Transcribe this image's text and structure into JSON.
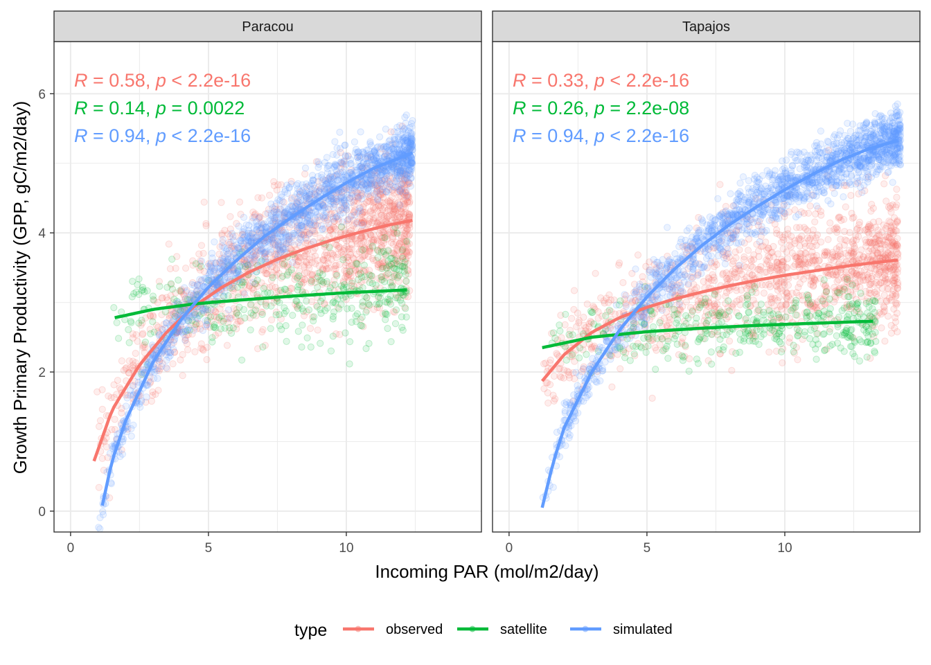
{
  "chart_data": {
    "type": "scatter",
    "xlabel": "Incoming PAR (mol/m2/day)",
    "ylabel": "Growth Primary Productivity (GPP, gC/m2/day)",
    "xticks": [
      "0",
      "5",
      "10"
    ],
    "yticks": [
      "0",
      "2",
      "4",
      "6"
    ],
    "xlim": [
      -0.6,
      14.9
    ],
    "ylim": [
      -0.3,
      6.75
    ],
    "grid": true,
    "legend": {
      "title": "type",
      "position": "bottom",
      "entries": [
        {
          "label": "observed",
          "color": "#F8766D"
        },
        {
          "label": "satellite",
          "color": "#00BA38"
        },
        {
          "label": "simulated",
          "color": "#619CFF"
        }
      ]
    },
    "panels": [
      {
        "title": "Paracou",
        "xlim": [
          -0.6,
          14.9
        ],
        "stats": [
          {
            "series": "observed",
            "r": "0.58",
            "p_op": "<",
            "p": "2.2e-16"
          },
          {
            "series": "satellite",
            "r": "0.14",
            "p_op": "=",
            "p": "0.0022"
          },
          {
            "series": "simulated",
            "r": "0.94",
            "p_op": "<",
            "p": "2.2e-16"
          }
        ],
        "fits": [
          {
            "series": "observed",
            "x": [
              0.85,
              1.5,
              2.5,
              3.5,
              4.5,
              5.5,
              6.5,
              7.5,
              8.5,
              9.5,
              10.5,
              11.5,
              12.4
            ],
            "y": [
              0.72,
              1.45,
              2.1,
              2.58,
              2.95,
              3.22,
              3.44,
              3.62,
              3.77,
              3.9,
              4.01,
              4.11,
              4.18
            ]
          },
          {
            "series": "satellite",
            "x": [
              1.6,
              3,
              4.5,
              6,
              8,
              10,
              12.2
            ],
            "y": [
              2.78,
              2.9,
              2.98,
              3.03,
              3.09,
              3.14,
              3.18
            ]
          },
          {
            "series": "simulated",
            "x": [
              1.15,
              1.5,
              2,
              3,
              4,
              5,
              6,
              7,
              8,
              9,
              10,
              11,
              12.4
            ],
            "y": [
              0.08,
              0.72,
              1.3,
              2.15,
              2.75,
              3.22,
              3.6,
              3.94,
              4.22,
              4.48,
              4.72,
              4.93,
              5.15
            ]
          }
        ],
        "clouds": [
          {
            "series": "observed",
            "n": 1400,
            "xrange": [
              0.9,
              12.3
            ],
            "spread": 0.48,
            "curve": "observed",
            "noise_y": "wide"
          },
          {
            "series": "satellite",
            "n": 360,
            "xrange": [
              1.5,
              12.2
            ],
            "spread": 0.35,
            "curve": "satellite",
            "noise_y": "medium"
          },
          {
            "series": "simulated",
            "n": 1600,
            "xrange": [
              1.0,
              12.4
            ],
            "spread": 0.22,
            "curve": "simulated",
            "noise_y": "narrow"
          }
        ]
      },
      {
        "title": "Tapajos",
        "xlim": [
          -0.6,
          14.9
        ],
        "stats": [
          {
            "series": "observed",
            "r": "0.33",
            "p_op": "<",
            "p": "2.2e-16"
          },
          {
            "series": "satellite",
            "r": "0.26",
            "p_op": "=",
            "p": "2.2e-08"
          },
          {
            "series": "simulated",
            "r": "0.94",
            "p_op": "<",
            "p": "2.2e-16"
          }
        ],
        "fits": [
          {
            "series": "observed",
            "x": [
              1.2,
              2,
              3,
              4,
              5,
              6,
              7,
              8,
              9,
              10,
              11,
              12,
              13,
              14.1
            ],
            "y": [
              1.87,
              2.25,
              2.57,
              2.78,
              2.93,
              3.05,
              3.15,
              3.24,
              3.32,
              3.39,
              3.45,
              3.51,
              3.56,
              3.61
            ]
          },
          {
            "series": "satellite",
            "x": [
              1.2,
              3,
              5,
              7,
              9,
              11,
              13.2
            ],
            "y": [
              2.35,
              2.5,
              2.58,
              2.63,
              2.67,
              2.7,
              2.73
            ]
          },
          {
            "series": "simulated",
            "x": [
              1.2,
              1.6,
              2,
              3,
              4,
              5,
              6,
              7,
              8,
              9,
              10,
              11,
              12,
              13,
              14.1
            ],
            "y": [
              0.05,
              0.7,
              1.2,
              2.0,
              2.6,
              3.08,
              3.48,
              3.82,
              4.12,
              4.38,
              4.62,
              4.84,
              5.04,
              5.2,
              5.33
            ]
          }
        ],
        "clouds": [
          {
            "series": "observed",
            "n": 1300,
            "xrange": [
              1.2,
              14.1
            ],
            "spread": 0.45,
            "curve": "observed",
            "noise_y": "wide"
          },
          {
            "series": "satellite",
            "n": 380,
            "xrange": [
              1.3,
              13.3
            ],
            "spread": 0.25,
            "curve": "satellite",
            "noise_y": "medium"
          },
          {
            "series": "simulated",
            "n": 1700,
            "xrange": [
              1.2,
              14.2
            ],
            "spread": 0.2,
            "curve": "simulated",
            "noise_y": "narrow"
          }
        ]
      }
    ]
  }
}
